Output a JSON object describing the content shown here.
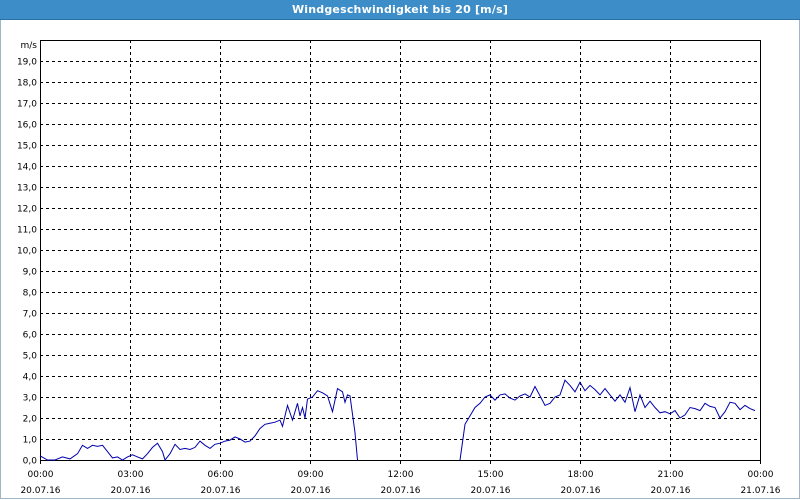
{
  "window": {
    "title": "Windgeschwindigkeit bis 20 [m/s]"
  },
  "chart_data": {
    "type": "line",
    "title": "Windgeschwindigkeit bis 20 [m/s]",
    "ylabel": "m/s",
    "xlabel": "",
    "ylim": [
      0,
      20
    ],
    "y_ticks": [
      "0,0",
      "1,0",
      "2,0",
      "3,0",
      "4,0",
      "5,0",
      "6,0",
      "7,0",
      "8,0",
      "9,0",
      "10,0",
      "11,0",
      "12,0",
      "13,0",
      "14,0",
      "15,0",
      "16,0",
      "17,0",
      "18,0",
      "19,0"
    ],
    "x_ticks": [
      {
        "time": "00:00",
        "date": "20.07.16"
      },
      {
        "time": "03:00",
        "date": "20.07.16"
      },
      {
        "time": "06:00",
        "date": "20.07.16"
      },
      {
        "time": "09:00",
        "date": "20.07.16"
      },
      {
        "time": "12:00",
        "date": "20.07.16"
      },
      {
        "time": "15:00",
        "date": "20.07.16"
      },
      {
        "time": "18:00",
        "date": "20.07.16"
      },
      {
        "time": "21:00",
        "date": "20.07.16"
      },
      {
        "time": "00:00",
        "date": "21.07.16"
      }
    ],
    "xlim": [
      "20.07.16 00:00",
      "21.07.16 00:00"
    ],
    "grid": true,
    "series": [
      {
        "color": "#0000aa",
        "segments": [
          [
            [
              "00:00",
              0.2
            ],
            [
              "00:15",
              0.0
            ],
            [
              "00:30",
              0.0
            ],
            [
              "00:45",
              0.15
            ],
            [
              "01:00",
              0.05
            ],
            [
              "01:15",
              0.3
            ],
            [
              "01:25",
              0.7
            ],
            [
              "01:35",
              0.55
            ],
            [
              "01:45",
              0.7
            ],
            [
              "01:55",
              0.65
            ],
            [
              "02:05",
              0.7
            ],
            [
              "02:15",
              0.4
            ],
            [
              "02:25",
              0.1
            ],
            [
              "02:35",
              0.15
            ],
            [
              "02:45",
              0.0
            ],
            [
              "02:55",
              0.15
            ],
            [
              "03:05",
              0.25
            ],
            [
              "03:15",
              0.15
            ],
            [
              "03:25",
              0.05
            ],
            [
              "03:35",
              0.3
            ],
            [
              "03:45",
              0.6
            ],
            [
              "03:55",
              0.8
            ],
            [
              "04:05",
              0.4
            ],
            [
              "04:10",
              0.0
            ],
            [
              "04:20",
              0.3
            ],
            [
              "04:30",
              0.75
            ],
            [
              "04:40",
              0.5
            ],
            [
              "04:50",
              0.55
            ],
            [
              "05:00",
              0.5
            ],
            [
              "05:10",
              0.6
            ],
            [
              "05:20",
              0.9
            ],
            [
              "05:30",
              0.7
            ],
            [
              "05:40",
              0.55
            ],
            [
              "05:50",
              0.75
            ],
            [
              "06:00",
              0.8
            ],
            [
              "06:10",
              0.9
            ],
            [
              "06:20",
              0.95
            ],
            [
              "06:30",
              1.1
            ],
            [
              "06:40",
              1.0
            ],
            [
              "06:50",
              0.85
            ],
            [
              "07:00",
              0.9
            ],
            [
              "07:10",
              1.15
            ],
            [
              "07:20",
              1.5
            ],
            [
              "07:30",
              1.7
            ],
            [
              "07:40",
              1.75
            ],
            [
              "07:50",
              1.8
            ],
            [
              "08:00",
              1.9
            ],
            [
              "08:05",
              1.6
            ],
            [
              "08:15",
              2.6
            ],
            [
              "08:25",
              1.9
            ],
            [
              "08:35",
              2.7
            ],
            [
              "08:40",
              2.1
            ],
            [
              "08:45",
              2.5
            ],
            [
              "08:50",
              2.0
            ],
            [
              "08:55",
              2.9
            ],
            [
              "09:05",
              3.0
            ],
            [
              "09:15",
              3.3
            ],
            [
              "09:25",
              3.2
            ],
            [
              "09:35",
              3.05
            ],
            [
              "09:45",
              2.3
            ],
            [
              "09:55",
              3.4
            ],
            [
              "10:05",
              3.25
            ],
            [
              "10:10",
              2.75
            ],
            [
              "10:15",
              3.1
            ],
            [
              "10:20",
              3.05
            ],
            [
              "10:30",
              1.3
            ],
            [
              "10:35",
              0.0
            ]
          ],
          [
            [
              "14:00",
              0.0
            ],
            [
              "14:10",
              1.7
            ],
            [
              "14:20",
              2.1
            ],
            [
              "14:30",
              2.5
            ],
            [
              "14:40",
              2.7
            ],
            [
              "14:50",
              3.0
            ],
            [
              "15:00",
              3.1
            ],
            [
              "15:10",
              2.85
            ],
            [
              "15:20",
              3.1
            ],
            [
              "15:30",
              3.15
            ],
            [
              "15:40",
              2.95
            ],
            [
              "15:50",
              2.85
            ],
            [
              "16:00",
              3.05
            ],
            [
              "16:10",
              3.15
            ],
            [
              "16:20",
              3.0
            ],
            [
              "16:30",
              3.5
            ],
            [
              "16:40",
              3.05
            ],
            [
              "16:50",
              2.6
            ],
            [
              "17:00",
              2.7
            ],
            [
              "17:10",
              3.0
            ],
            [
              "17:20",
              3.1
            ],
            [
              "17:30",
              3.8
            ],
            [
              "17:40",
              3.55
            ],
            [
              "17:50",
              3.25
            ],
            [
              "18:00",
              3.7
            ],
            [
              "18:10",
              3.3
            ],
            [
              "18:20",
              3.55
            ],
            [
              "18:30",
              3.35
            ],
            [
              "18:40",
              3.1
            ],
            [
              "18:50",
              3.4
            ],
            [
              "19:00",
              3.1
            ],
            [
              "19:10",
              2.8
            ],
            [
              "19:20",
              3.1
            ],
            [
              "19:30",
              2.75
            ],
            [
              "19:40",
              3.45
            ],
            [
              "19:50",
              2.3
            ],
            [
              "20:00",
              3.1
            ],
            [
              "20:10",
              2.5
            ],
            [
              "20:20",
              2.8
            ],
            [
              "20:30",
              2.5
            ],
            [
              "20:40",
              2.25
            ],
            [
              "20:50",
              2.3
            ],
            [
              "21:00",
              2.2
            ],
            [
              "21:10",
              2.35
            ],
            [
              "21:20",
              2.0
            ],
            [
              "21:30",
              2.15
            ],
            [
              "21:40",
              2.5
            ],
            [
              "21:50",
              2.45
            ],
            [
              "22:00",
              2.35
            ],
            [
              "22:10",
              2.7
            ],
            [
              "22:20",
              2.55
            ],
            [
              "22:30",
              2.5
            ],
            [
              "22:40",
              2.0
            ],
            [
              "22:50",
              2.3
            ],
            [
              "23:00",
              2.75
            ],
            [
              "23:10",
              2.7
            ],
            [
              "23:20",
              2.4
            ],
            [
              "23:30",
              2.6
            ],
            [
              "23:40",
              2.45
            ],
            [
              "23:50",
              2.35
            ]
          ]
        ]
      }
    ]
  }
}
